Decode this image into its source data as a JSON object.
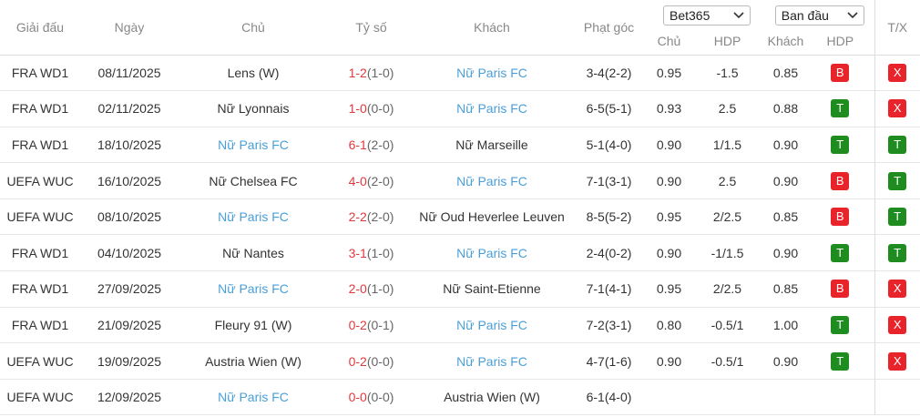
{
  "header": {
    "league": "Giải đấu",
    "date": "Ngày",
    "home": "Chủ",
    "score": "Tỷ số",
    "away": "Khách",
    "corners": "Phạt góc",
    "bookmaker": "Bet365",
    "odds_type": "Ban đầu",
    "home_odds": "Chủ",
    "hdp": "HDP",
    "away_odds": "Khách",
    "hdp_result": "HDP",
    "tx": "T/X"
  },
  "colors": {
    "score": "#e0393e",
    "half": "#666666",
    "highlight": "#4a9fd8",
    "badges": {
      "B": "#e8232a",
      "T": "#1e8c1e",
      "X": "#e8232a"
    }
  },
  "table": {
    "rows": [
      {
        "league": "FRA WD1",
        "date": "08/11/2025",
        "home": "Lens (W)",
        "score": "1-2",
        "half": "(1-0)",
        "away": "Nữ Paris FC",
        "highlight": "away",
        "corners": "3-4(2-2)",
        "home_odds": "0.95",
        "hdp": "-1.5",
        "away_odds": "0.85",
        "hdp_result": "B",
        "tx": "X"
      },
      {
        "league": "FRA WD1",
        "date": "02/11/2025",
        "home": "Nữ Lyonnais",
        "score": "1-0",
        "half": "(0-0)",
        "away": "Nữ Paris FC",
        "highlight": "away",
        "corners": "6-5(5-1)",
        "home_odds": "0.93",
        "hdp": "2.5",
        "away_odds": "0.88",
        "hdp_result": "T",
        "tx": "X"
      },
      {
        "league": "FRA WD1",
        "date": "18/10/2025",
        "home": "Nữ Paris FC",
        "score": "6-1",
        "half": "(2-0)",
        "away": "Nữ Marseille",
        "highlight": "home",
        "corners": "5-1(4-0)",
        "home_odds": "0.90",
        "hdp": "1/1.5",
        "away_odds": "0.90",
        "hdp_result": "T",
        "tx": "T"
      },
      {
        "league": "UEFA WUC",
        "date": "16/10/2025",
        "home": "Nữ Chelsea FC",
        "score": "4-0",
        "half": "(2-0)",
        "away": "Nữ Paris FC",
        "highlight": "away",
        "corners": "7-1(3-1)",
        "home_odds": "0.90",
        "hdp": "2.5",
        "away_odds": "0.90",
        "hdp_result": "B",
        "tx": "T"
      },
      {
        "league": "UEFA WUC",
        "date": "08/10/2025",
        "home": "Nữ Paris FC",
        "score": "2-2",
        "half": "(2-0)",
        "away": "Nữ Oud Heverlee Leuven",
        "highlight": "home",
        "corners": "8-5(5-2)",
        "home_odds": "0.95",
        "hdp": "2/2.5",
        "away_odds": "0.85",
        "hdp_result": "B",
        "tx": "T"
      },
      {
        "league": "FRA WD1",
        "date": "04/10/2025",
        "home": "Nữ Nantes",
        "score": "3-1",
        "half": "(1-0)",
        "away": "Nữ Paris FC",
        "highlight": "away",
        "corners": "2-4(0-2)",
        "home_odds": "0.90",
        "hdp": "-1/1.5",
        "away_odds": "0.90",
        "hdp_result": "T",
        "tx": "T"
      },
      {
        "league": "FRA WD1",
        "date": "27/09/2025",
        "home": "Nữ Paris FC",
        "score": "2-0",
        "half": "(1-0)",
        "away": "Nữ Saint-Etienne",
        "highlight": "home",
        "corners": "7-1(4-1)",
        "home_odds": "0.95",
        "hdp": "2/2.5",
        "away_odds": "0.85",
        "hdp_result": "B",
        "tx": "X"
      },
      {
        "league": "FRA WD1",
        "date": "21/09/2025",
        "home": "Fleury 91 (W)",
        "score": "0-2",
        "half": "(0-1)",
        "away": "Nữ Paris FC",
        "highlight": "away",
        "corners": "7-2(3-1)",
        "home_odds": "0.80",
        "hdp": "-0.5/1",
        "away_odds": "1.00",
        "hdp_result": "T",
        "tx": "X"
      },
      {
        "league": "UEFA WUC",
        "date": "19/09/2025",
        "home": "Austria Wien (W)",
        "score": "0-2",
        "half": "(0-0)",
        "away": "Nữ Paris FC",
        "highlight": "away",
        "corners": "4-7(1-6)",
        "home_odds": "0.90",
        "hdp": "-0.5/1",
        "away_odds": "0.90",
        "hdp_result": "T",
        "tx": "X"
      },
      {
        "league": "UEFA WUC",
        "date": "12/09/2025",
        "home": "Nữ Paris FC",
        "score": "0-0",
        "half": "(0-0)",
        "away": "Austria Wien (W)",
        "highlight": "home",
        "corners": "6-1(4-0)"
      }
    ]
  }
}
